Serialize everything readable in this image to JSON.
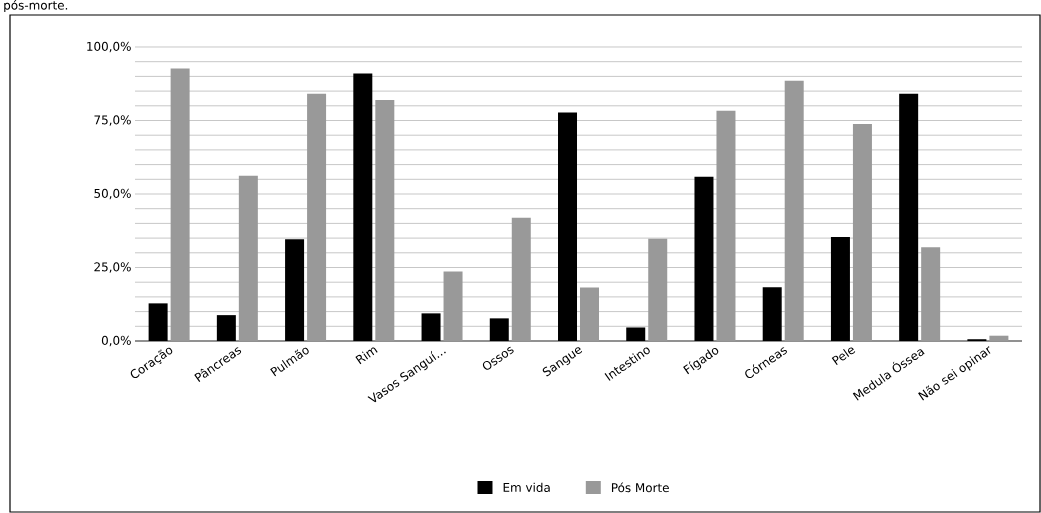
{
  "chart_data": {
    "type": "bar",
    "categories": [
      "Coração",
      "Pâncreas",
      "Pulmão",
      "Rim",
      "Vasos Sanguí…",
      "Ossos",
      "Sangue",
      "Intestino",
      "Fígado",
      "Córneas",
      "Pele",
      "Medula Óssea",
      "Não sei opinar"
    ],
    "series": [
      {
        "name": "Em vida",
        "color": "#000000",
        "values": [
          12.8,
          8.8,
          34.6,
          91.0,
          9.4,
          7.7,
          77.7,
          4.6,
          55.9,
          18.3,
          35.4,
          84.1,
          0.6
        ]
      },
      {
        "name": "Pós Morte",
        "color": "#999999",
        "values": [
          92.7,
          56.2,
          84.1,
          82.0,
          23.6,
          41.9,
          18.2,
          34.8,
          78.3,
          88.5,
          73.8,
          31.9,
          1.8
        ]
      }
    ],
    "ylim": [
      0,
      100
    ],
    "yticks": [
      {
        "value": 0,
        "label": "0,0%"
      },
      {
        "value": 5,
        "label": null
      },
      {
        "value": 10,
        "label": null
      },
      {
        "value": 15,
        "label": null
      },
      {
        "value": 20,
        "label": null
      },
      {
        "value": 25,
        "label": "25,0%"
      },
      {
        "value": 30,
        "label": null
      },
      {
        "value": 35,
        "label": null
      },
      {
        "value": 40,
        "label": null
      },
      {
        "value": 45,
        "label": null
      },
      {
        "value": 50,
        "label": "50,0%"
      },
      {
        "value": 55,
        "label": null
      },
      {
        "value": 60,
        "label": null
      },
      {
        "value": 65,
        "label": null
      },
      {
        "value": 70,
        "label": null
      },
      {
        "value": 75,
        "label": "75,0%"
      },
      {
        "value": 80,
        "label": null
      },
      {
        "value": 85,
        "label": null
      },
      {
        "value": 90,
        "label": null
      },
      {
        "value": 95,
        "label": null
      },
      {
        "value": 100,
        "label": "100,0%"
      }
    ],
    "grid": "y",
    "legend": "bottom",
    "annotations": [
      "pós-morte."
    ]
  }
}
